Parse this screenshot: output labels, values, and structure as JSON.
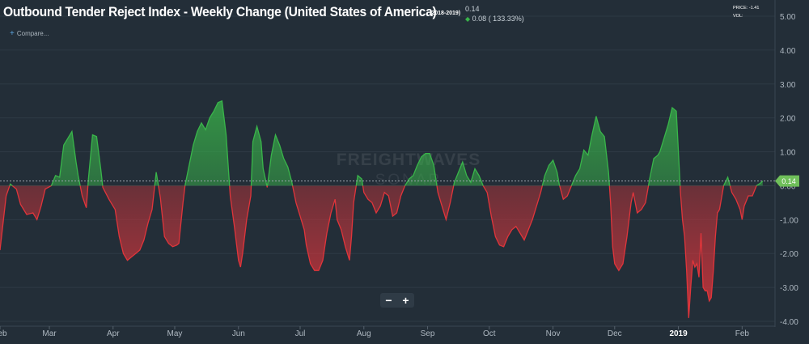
{
  "header": {
    "title": "Outbound Tender Reject Index - Weekly Change (United States of America)",
    "subtitle": "(2018-2019)",
    "last_value": "0.14",
    "change": "0.08 ( 133.33%)",
    "compare_label": "Compare...",
    "price_label": "PRICE: -1.41",
    "vol_label": "VOL:"
  },
  "watermark": {
    "line1": "FREIGHTWAVES",
    "line2": "SONAR"
  },
  "controls": {
    "zoom_out": "−",
    "zoom_in": "+"
  },
  "colors": {
    "background": "#232e38",
    "positive": "#39b54a",
    "negative": "#e0353b",
    "grid": "#2e3a45",
    "axis_text": "#aeb8c1"
  },
  "chart_data": {
    "type": "area",
    "title": "Outbound Tender Reject Index - Weekly Change (United States of America)",
    "ylim": [
      -4,
      5
    ],
    "yticks": [
      "5.00",
      "4.00",
      "3.00",
      "2.00",
      "1.00",
      "0.00",
      "-1.00",
      "-2.00",
      "-3.00",
      "-4.00"
    ],
    "ytick_values": [
      5,
      4,
      3,
      2,
      1,
      0,
      -1,
      -2,
      -3,
      -4
    ],
    "xlim": [
      0,
      377
    ],
    "xticks": [
      {
        "label": "Feb",
        "x": 0
      },
      {
        "label": "Mar",
        "x": 24
      },
      {
        "label": "Apr",
        "x": 55
      },
      {
        "label": "May",
        "x": 85
      },
      {
        "label": "Jun",
        "x": 116
      },
      {
        "label": "Jul",
        "x": 146
      },
      {
        "label": "Aug",
        "x": 177
      },
      {
        "label": "Sep",
        "x": 208
      },
      {
        "label": "Oct",
        "x": 238
      },
      {
        "label": "Nov",
        "x": 269
      },
      {
        "label": "Dec",
        "x": 299
      },
      {
        "label": "2019",
        "x": 330
      },
      {
        "label": "Feb",
        "x": 361
      }
    ],
    "current_value": 0.14,
    "grid": true,
    "series": [
      {
        "points": [
          [
            0,
            -1.9
          ],
          [
            3,
            -0.3
          ],
          [
            5,
            0.05
          ],
          [
            8,
            -0.1
          ],
          [
            10,
            -0.55
          ],
          [
            13,
            -0.85
          ],
          [
            16,
            -0.8
          ],
          [
            18,
            -1.0
          ],
          [
            20,
            -0.6
          ],
          [
            22,
            -0.1
          ],
          [
            25,
            0.0
          ],
          [
            27,
            0.3
          ],
          [
            29,
            0.25
          ],
          [
            31,
            1.2
          ],
          [
            33,
            1.4
          ],
          [
            35,
            1.6
          ],
          [
            37,
            0.7
          ],
          [
            38,
            0.3
          ],
          [
            40,
            -0.3
          ],
          [
            42,
            -0.65
          ],
          [
            43,
            0.2
          ],
          [
            45,
            1.5
          ],
          [
            47,
            1.45
          ],
          [
            49,
            0.5
          ],
          [
            50,
            -0.05
          ],
          [
            53,
            -0.4
          ],
          [
            56,
            -0.7
          ],
          [
            58,
            -1.5
          ],
          [
            60,
            -2.0
          ],
          [
            62,
            -2.2
          ],
          [
            64,
            -2.1
          ],
          [
            66,
            -2.0
          ],
          [
            68,
            -1.9
          ],
          [
            70,
            -1.6
          ],
          [
            72,
            -1.1
          ],
          [
            74,
            -0.7
          ],
          [
            76,
            0.4
          ],
          [
            78,
            -0.35
          ],
          [
            80,
            -1.5
          ],
          [
            82,
            -1.7
          ],
          [
            84,
            -1.8
          ],
          [
            86,
            -1.75
          ],
          [
            87,
            -1.7
          ],
          [
            89,
            -0.5
          ],
          [
            90,
            0.0
          ],
          [
            92,
            0.6
          ],
          [
            94,
            1.2
          ],
          [
            96,
            1.6
          ],
          [
            98,
            1.85
          ],
          [
            100,
            1.65
          ],
          [
            102,
            2.0
          ],
          [
            104,
            2.2
          ],
          [
            106,
            2.45
          ],
          [
            108,
            2.5
          ],
          [
            110,
            1.5
          ],
          [
            112,
            -0.3
          ],
          [
            114,
            -1.2
          ],
          [
            116,
            -2.2
          ],
          [
            117,
            -2.4
          ],
          [
            118,
            -2.0
          ],
          [
            120,
            -1.0
          ],
          [
            122,
            -0.3
          ],
          [
            123,
            1.3
          ],
          [
            125,
            1.75
          ],
          [
            127,
            1.3
          ],
          [
            128,
            0.5
          ],
          [
            130,
            -0.05
          ],
          [
            132,
            0.9
          ],
          [
            134,
            1.5
          ],
          [
            136,
            1.2
          ],
          [
            138,
            0.8
          ],
          [
            140,
            0.55
          ],
          [
            142,
            0.1
          ],
          [
            144,
            -0.5
          ],
          [
            146,
            -0.9
          ],
          [
            148,
            -1.3
          ],
          [
            149,
            -1.75
          ],
          [
            151,
            -2.3
          ],
          [
            153,
            -2.5
          ],
          [
            155,
            -2.5
          ],
          [
            157,
            -2.2
          ],
          [
            159,
            -1.4
          ],
          [
            161,
            -0.8
          ],
          [
            163,
            -0.4
          ],
          [
            164,
            -1.0
          ],
          [
            166,
            -1.3
          ],
          [
            168,
            -1.8
          ],
          [
            170,
            -2.2
          ],
          [
            171,
            -1.5
          ],
          [
            172,
            -0.5
          ],
          [
            174,
            0.3
          ],
          [
            176,
            0.2
          ],
          [
            177,
            -0.2
          ],
          [
            179,
            -0.4
          ],
          [
            181,
            -0.5
          ],
          [
            183,
            -0.8
          ],
          [
            185,
            -0.6
          ],
          [
            187,
            -0.2
          ],
          [
            189,
            -0.3
          ],
          [
            191,
            -0.9
          ],
          [
            193,
            -0.8
          ],
          [
            195,
            -0.3
          ],
          [
            197,
            0.0
          ],
          [
            199,
            0.2
          ],
          [
            201,
            0.3
          ],
          [
            203,
            0.6
          ],
          [
            205,
            0.85
          ],
          [
            207,
            0.95
          ],
          [
            209,
            0.95
          ],
          [
            211,
            0.6
          ],
          [
            213,
            -0.2
          ],
          [
            215,
            -0.6
          ],
          [
            217,
            -1.0
          ],
          [
            219,
            -0.5
          ],
          [
            221,
            0.1
          ],
          [
            223,
            0.4
          ],
          [
            225,
            0.7
          ],
          [
            227,
            0.3
          ],
          [
            229,
            0.1
          ],
          [
            231,
            0.5
          ],
          [
            233,
            0.3
          ],
          [
            235,
            0.0
          ],
          [
            237,
            -0.2
          ],
          [
            239,
            -0.9
          ],
          [
            241,
            -1.5
          ],
          [
            243,
            -1.75
          ],
          [
            245,
            -1.8
          ],
          [
            247,
            -1.5
          ],
          [
            249,
            -1.3
          ],
          [
            251,
            -1.2
          ],
          [
            253,
            -1.4
          ],
          [
            255,
            -1.6
          ],
          [
            257,
            -1.3
          ],
          [
            259,
            -1.0
          ],
          [
            261,
            -0.6
          ],
          [
            263,
            -0.2
          ],
          [
            265,
            0.3
          ],
          [
            267,
            0.6
          ],
          [
            269,
            0.75
          ],
          [
            271,
            0.4
          ],
          [
            272,
            0.05
          ],
          [
            274,
            -0.4
          ],
          [
            276,
            -0.3
          ],
          [
            278,
            0.0
          ],
          [
            280,
            0.3
          ],
          [
            282,
            0.5
          ],
          [
            284,
            1.05
          ],
          [
            286,
            0.9
          ],
          [
            288,
            1.5
          ],
          [
            290,
            2.05
          ],
          [
            292,
            1.6
          ],
          [
            294,
            1.45
          ],
          [
            296,
            0.4
          ],
          [
            297,
            -0.5
          ],
          [
            298,
            -1.8
          ],
          [
            299,
            -2.3
          ],
          [
            301,
            -2.5
          ],
          [
            303,
            -2.3
          ],
          [
            305,
            -1.5
          ],
          [
            307,
            -0.5
          ],
          [
            308,
            -0.2
          ],
          [
            310,
            -0.8
          ],
          [
            312,
            -0.7
          ],
          [
            314,
            -0.5
          ],
          [
            316,
            0.2
          ],
          [
            318,
            0.8
          ],
          [
            320,
            0.9
          ],
          [
            321,
            1.0
          ],
          [
            323,
            1.4
          ],
          [
            325,
            1.8
          ],
          [
            327,
            2.3
          ],
          [
            329,
            2.2
          ],
          [
            330,
            1.0
          ],
          [
            331,
            -0.2
          ],
          [
            332,
            -1.0
          ],
          [
            333,
            -1.5
          ],
          [
            334,
            -2.5
          ],
          [
            335,
            -3.9
          ],
          [
            336,
            -3.0
          ],
          [
            337,
            -2.2
          ],
          [
            338,
            -2.4
          ],
          [
            339,
            -2.3
          ],
          [
            340,
            -2.7
          ],
          [
            341,
            -1.4
          ],
          [
            342,
            -3.0
          ],
          [
            343,
            -3.1
          ],
          [
            344,
            -3.1
          ],
          [
            345,
            -3.4
          ],
          [
            346,
            -3.3
          ],
          [
            347,
            -2.5
          ],
          [
            348,
            -1.5
          ],
          [
            349,
            -0.8
          ],
          [
            350,
            -0.7
          ],
          [
            352,
            0.0
          ],
          [
            354,
            0.25
          ],
          [
            356,
            -0.2
          ],
          [
            358,
            -0.4
          ],
          [
            360,
            -0.7
          ],
          [
            361,
            -1.0
          ],
          [
            362,
            -0.6
          ],
          [
            364,
            -0.3
          ],
          [
            366,
            -0.3
          ],
          [
            368,
            0.0
          ],
          [
            370,
            0.08
          ],
          [
            371,
            0.14
          ]
        ]
      }
    ]
  }
}
